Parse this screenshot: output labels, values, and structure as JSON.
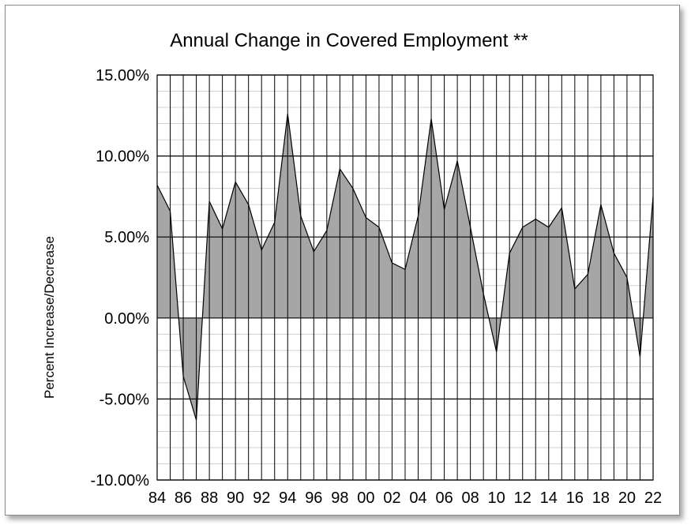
{
  "chart_data": {
    "type": "area",
    "title": "Annual Change in Covered Employment **",
    "xlabel": "",
    "ylabel": "Percent Increase/Decrease",
    "ylim": [
      -0.1,
      0.15
    ],
    "y_ticks": [
      -0.1,
      -0.05,
      0.0,
      0.05,
      0.1,
      0.15
    ],
    "y_tick_labels": [
      "-10.00%",
      "-5.00%",
      "0.00%",
      "5.00%",
      "10.00%",
      "15.00%"
    ],
    "x": [
      1984,
      1985,
      1986,
      1987,
      1988,
      1989,
      1990,
      1991,
      1992,
      1993,
      1994,
      1995,
      1996,
      1997,
      1998,
      1999,
      2000,
      2001,
      2002,
      2003,
      2004,
      2005,
      2006,
      2007,
      2008,
      2009,
      2010,
      2011,
      2012,
      2013,
      2014,
      2015,
      2016,
      2017,
      2018,
      2019,
      2020,
      2021,
      2022
    ],
    "x_tick_labels": [
      "84",
      "86",
      "88",
      "90",
      "92",
      "94",
      "96",
      "98",
      "00",
      "02",
      "04",
      "06",
      "08",
      "10",
      "12",
      "14",
      "16",
      "18",
      "20",
      "22"
    ],
    "x_tick_years": [
      1984,
      1986,
      1988,
      1990,
      1992,
      1994,
      1996,
      1998,
      2000,
      2002,
      2004,
      2006,
      2008,
      2010,
      2012,
      2014,
      2016,
      2018,
      2020,
      2022
    ],
    "series": [
      {
        "values": [
          0.082,
          0.066,
          -0.036,
          -0.063,
          0.072,
          0.055,
          0.084,
          0.07,
          0.042,
          0.059,
          0.126,
          0.063,
          0.041,
          0.054,
          0.092,
          0.08,
          0.062,
          0.056,
          0.034,
          0.03,
          0.063,
          0.123,
          0.067,
          0.097,
          0.056,
          0.015,
          -0.021,
          0.04,
          0.056,
          0.061,
          0.056,
          0.068,
          0.018,
          0.027,
          0.07,
          0.04,
          0.025,
          -0.024,
          0.075
        ]
      }
    ],
    "grid": true,
    "fill_color": "#a6a6a6",
    "line_color": "#000000"
  }
}
